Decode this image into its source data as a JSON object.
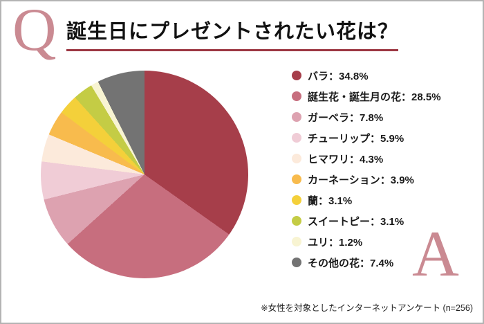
{
  "page": {
    "q_mark": "Q",
    "a_mark": "A",
    "title": "誕生日にプレゼントされたい花は？",
    "footnote": "※女性を対象としたインターネットアンケート (n=256)",
    "accent_color": "#ca8a92",
    "underline_color": "#9c3742",
    "border_color": "#b3b3b3"
  },
  "chart_data": {
    "type": "pie",
    "title": "誕生日にプレゼントされたい花は？",
    "labels": [
      "バラ",
      "誕生花・誕生月の花",
      "ガーベラ",
      "チューリップ",
      "ヒマワリ",
      "カーネーション",
      "蘭",
      "スイートピー",
      "ユリ",
      "その他の花"
    ],
    "values": [
      34.8,
      28.5,
      7.8,
      5.9,
      4.3,
      3.9,
      3.1,
      3.1,
      1.2,
      7.4
    ],
    "colors": [
      "#a63e4a",
      "#c76e7e",
      "#dda2b0",
      "#f0ccd6",
      "#fceadb",
      "#f8bb4d",
      "#f4d03a",
      "#c4cc45",
      "#f8f4d2",
      "#737373"
    ],
    "unit": "%",
    "separator": "：",
    "start_angle_deg": 0,
    "direction": "clockwise",
    "legend_position": "right"
  }
}
